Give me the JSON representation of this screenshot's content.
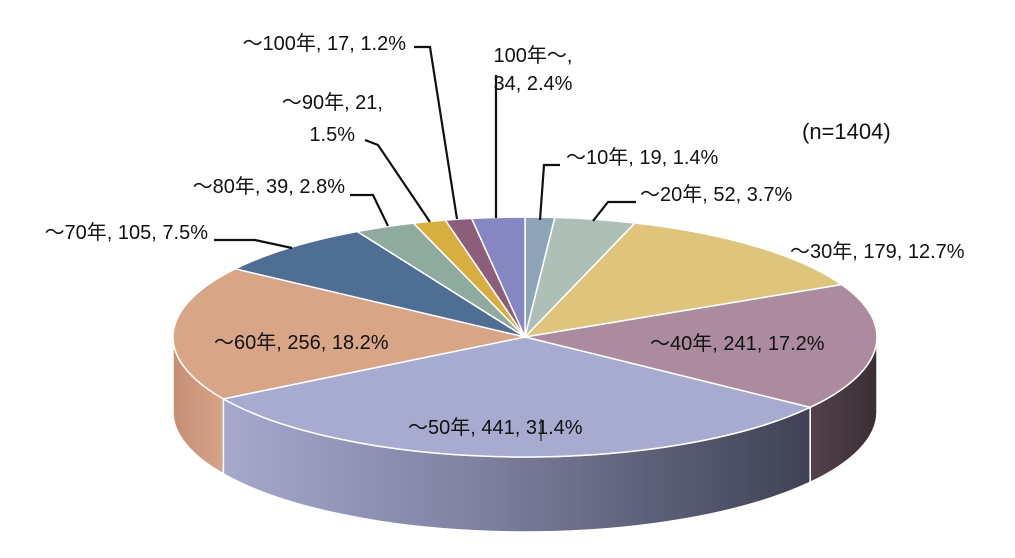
{
  "chart_data": {
    "type": "pie",
    "title": "",
    "note": "(n=1404)",
    "total": 1404,
    "slices": [
      {
        "name": "～10年",
        "count": 19,
        "percent": 1.4,
        "label_lines": [
          "～10年, 19, 1.4%"
        ],
        "color": "#8EA3B8",
        "side": "#5E7080"
      },
      {
        "name": "～20年",
        "count": 52,
        "percent": 3.7,
        "label_lines": [
          "～20年, 52, 3.7%"
        ],
        "color": "#AEBFB7",
        "side": "#7B8A83"
      },
      {
        "name": "～30年",
        "count": 179,
        "percent": 12.7,
        "label_lines": [
          "～30年, 179, 12.7%"
        ],
        "color": "#DEC57B",
        "side": "#9E8A4E"
      },
      {
        "name": "～40年",
        "count": 241,
        "percent": 17.2,
        "label_lines": [
          "～40年, 241, 17.2%"
        ],
        "color": "#AD8B9F",
        "side": "#4A3941"
      },
      {
        "name": "～50年",
        "count": 441,
        "percent": 31.4,
        "label_lines": [
          "～50年, 441, 31.4%"
        ],
        "color": "#A8ABD0",
        "side": "#5C5F7C"
      },
      {
        "name": "～60年",
        "count": 256,
        "percent": 18.2,
        "label_lines": [
          "～60年, 256, 18.2%"
        ],
        "color": "#D8A587",
        "side": "#C4967A"
      },
      {
        "name": "～70年",
        "count": 105,
        "percent": 7.5,
        "label_lines": [
          "～70年, 105, 7.5%"
        ],
        "color": "#4E6E93",
        "side": "#344A63"
      },
      {
        "name": "～80年",
        "count": 39,
        "percent": 2.8,
        "label_lines": [
          "～80年, 39, 2.8%"
        ],
        "color": "#8FAA9E",
        "side": "#5E7067"
      },
      {
        "name": "～90年",
        "count": 21,
        "percent": 1.5,
        "label_lines": [
          "～90年, 21,",
          "1.5%"
        ],
        "color": "#D9AE40",
        "side": "#8F7229"
      },
      {
        "name": "～100年",
        "count": 17,
        "percent": 1.2,
        "label_lines": [
          "～100年, 17, 1.2%"
        ],
        "color": "#8D5E7B",
        "side": "#5C3E51"
      },
      {
        "name": "100年～",
        "count": 34,
        "percent": 2.4,
        "label_lines": [
          "100年～,",
          "34, 2.4%"
        ],
        "color": "#8586C2",
        "side": "#585A85"
      }
    ]
  }
}
